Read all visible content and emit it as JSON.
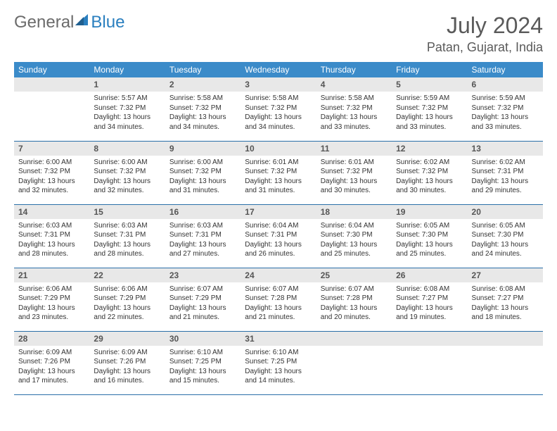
{
  "logo": {
    "general": "General",
    "blue": "Blue"
  },
  "title": "July 2024",
  "location": "Patan, Gujarat, India",
  "colors": {
    "header_bg": "#3b8bc9",
    "header_text": "#ffffff",
    "daynum_bg": "#e8e8e8",
    "border": "#2a6fa8",
    "logo_general": "#6b6b6b",
    "logo_blue": "#2a7fbf"
  },
  "weekdays": [
    "Sunday",
    "Monday",
    "Tuesday",
    "Wednesday",
    "Thursday",
    "Friday",
    "Saturday"
  ],
  "weeks": [
    [
      {
        "n": "",
        "rise": "",
        "set": "",
        "day": ""
      },
      {
        "n": "1",
        "rise": "Sunrise: 5:57 AM",
        "set": "Sunset: 7:32 PM",
        "day": "Daylight: 13 hours and 34 minutes."
      },
      {
        "n": "2",
        "rise": "Sunrise: 5:58 AM",
        "set": "Sunset: 7:32 PM",
        "day": "Daylight: 13 hours and 34 minutes."
      },
      {
        "n": "3",
        "rise": "Sunrise: 5:58 AM",
        "set": "Sunset: 7:32 PM",
        "day": "Daylight: 13 hours and 34 minutes."
      },
      {
        "n": "4",
        "rise": "Sunrise: 5:58 AM",
        "set": "Sunset: 7:32 PM",
        "day": "Daylight: 13 hours and 33 minutes."
      },
      {
        "n": "5",
        "rise": "Sunrise: 5:59 AM",
        "set": "Sunset: 7:32 PM",
        "day": "Daylight: 13 hours and 33 minutes."
      },
      {
        "n": "6",
        "rise": "Sunrise: 5:59 AM",
        "set": "Sunset: 7:32 PM",
        "day": "Daylight: 13 hours and 33 minutes."
      }
    ],
    [
      {
        "n": "7",
        "rise": "Sunrise: 6:00 AM",
        "set": "Sunset: 7:32 PM",
        "day": "Daylight: 13 hours and 32 minutes."
      },
      {
        "n": "8",
        "rise": "Sunrise: 6:00 AM",
        "set": "Sunset: 7:32 PM",
        "day": "Daylight: 13 hours and 32 minutes."
      },
      {
        "n": "9",
        "rise": "Sunrise: 6:00 AM",
        "set": "Sunset: 7:32 PM",
        "day": "Daylight: 13 hours and 31 minutes."
      },
      {
        "n": "10",
        "rise": "Sunrise: 6:01 AM",
        "set": "Sunset: 7:32 PM",
        "day": "Daylight: 13 hours and 31 minutes."
      },
      {
        "n": "11",
        "rise": "Sunrise: 6:01 AM",
        "set": "Sunset: 7:32 PM",
        "day": "Daylight: 13 hours and 30 minutes."
      },
      {
        "n": "12",
        "rise": "Sunrise: 6:02 AM",
        "set": "Sunset: 7:32 PM",
        "day": "Daylight: 13 hours and 30 minutes."
      },
      {
        "n": "13",
        "rise": "Sunrise: 6:02 AM",
        "set": "Sunset: 7:31 PM",
        "day": "Daylight: 13 hours and 29 minutes."
      }
    ],
    [
      {
        "n": "14",
        "rise": "Sunrise: 6:03 AM",
        "set": "Sunset: 7:31 PM",
        "day": "Daylight: 13 hours and 28 minutes."
      },
      {
        "n": "15",
        "rise": "Sunrise: 6:03 AM",
        "set": "Sunset: 7:31 PM",
        "day": "Daylight: 13 hours and 28 minutes."
      },
      {
        "n": "16",
        "rise": "Sunrise: 6:03 AM",
        "set": "Sunset: 7:31 PM",
        "day": "Daylight: 13 hours and 27 minutes."
      },
      {
        "n": "17",
        "rise": "Sunrise: 6:04 AM",
        "set": "Sunset: 7:31 PM",
        "day": "Daylight: 13 hours and 26 minutes."
      },
      {
        "n": "18",
        "rise": "Sunrise: 6:04 AM",
        "set": "Sunset: 7:30 PM",
        "day": "Daylight: 13 hours and 25 minutes."
      },
      {
        "n": "19",
        "rise": "Sunrise: 6:05 AM",
        "set": "Sunset: 7:30 PM",
        "day": "Daylight: 13 hours and 25 minutes."
      },
      {
        "n": "20",
        "rise": "Sunrise: 6:05 AM",
        "set": "Sunset: 7:30 PM",
        "day": "Daylight: 13 hours and 24 minutes."
      }
    ],
    [
      {
        "n": "21",
        "rise": "Sunrise: 6:06 AM",
        "set": "Sunset: 7:29 PM",
        "day": "Daylight: 13 hours and 23 minutes."
      },
      {
        "n": "22",
        "rise": "Sunrise: 6:06 AM",
        "set": "Sunset: 7:29 PM",
        "day": "Daylight: 13 hours and 22 minutes."
      },
      {
        "n": "23",
        "rise": "Sunrise: 6:07 AM",
        "set": "Sunset: 7:29 PM",
        "day": "Daylight: 13 hours and 21 minutes."
      },
      {
        "n": "24",
        "rise": "Sunrise: 6:07 AM",
        "set": "Sunset: 7:28 PM",
        "day": "Daylight: 13 hours and 21 minutes."
      },
      {
        "n": "25",
        "rise": "Sunrise: 6:07 AM",
        "set": "Sunset: 7:28 PM",
        "day": "Daylight: 13 hours and 20 minutes."
      },
      {
        "n": "26",
        "rise": "Sunrise: 6:08 AM",
        "set": "Sunset: 7:27 PM",
        "day": "Daylight: 13 hours and 19 minutes."
      },
      {
        "n": "27",
        "rise": "Sunrise: 6:08 AM",
        "set": "Sunset: 7:27 PM",
        "day": "Daylight: 13 hours and 18 minutes."
      }
    ],
    [
      {
        "n": "28",
        "rise": "Sunrise: 6:09 AM",
        "set": "Sunset: 7:26 PM",
        "day": "Daylight: 13 hours and 17 minutes."
      },
      {
        "n": "29",
        "rise": "Sunrise: 6:09 AM",
        "set": "Sunset: 7:26 PM",
        "day": "Daylight: 13 hours and 16 minutes."
      },
      {
        "n": "30",
        "rise": "Sunrise: 6:10 AM",
        "set": "Sunset: 7:25 PM",
        "day": "Daylight: 13 hours and 15 minutes."
      },
      {
        "n": "31",
        "rise": "Sunrise: 6:10 AM",
        "set": "Sunset: 7:25 PM",
        "day": "Daylight: 13 hours and 14 minutes."
      },
      {
        "n": "",
        "rise": "",
        "set": "",
        "day": ""
      },
      {
        "n": "",
        "rise": "",
        "set": "",
        "day": ""
      },
      {
        "n": "",
        "rise": "",
        "set": "",
        "day": ""
      }
    ]
  ]
}
